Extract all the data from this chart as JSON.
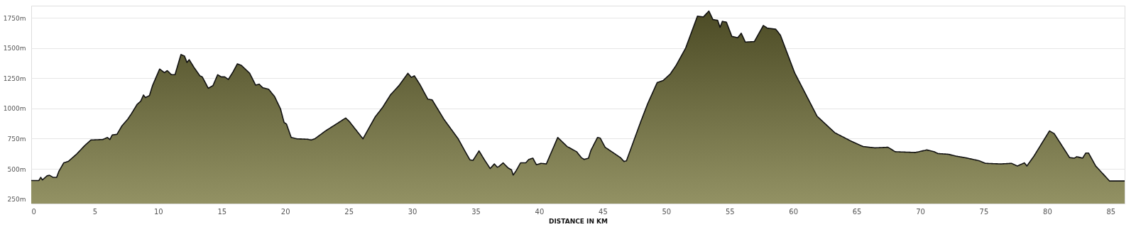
{
  "chart_data": {
    "type": "area",
    "xlabel": "DISTANCE IN KM",
    "xlim": [
      0,
      86.1
    ],
    "xticks": [
      0,
      5,
      10,
      15,
      20,
      25,
      30,
      35,
      40,
      45,
      50,
      55,
      60,
      65,
      70,
      75,
      80,
      85
    ],
    "ylim": [
      213,
      1850
    ],
    "yticks": [
      {
        "value": 250,
        "label": "250m"
      },
      {
        "value": 500,
        "label": "500m"
      },
      {
        "value": 750,
        "label": "750m"
      },
      {
        "value": 1000,
        "label": "1000m"
      },
      {
        "value": 1250,
        "label": "1250m"
      },
      {
        "value": 1500,
        "label": "1500m"
      },
      {
        "value": 1750,
        "label": "1750m"
      }
    ],
    "grid": "y",
    "marker": "none",
    "line_style": "solid",
    "series": [
      {
        "color": "#7c7a3c",
        "x": [
          0,
          0.6,
          0.75,
          0.88,
          1.25,
          1.44,
          1.72,
          2.0,
          2.18,
          2.56,
          2.93,
          3.58,
          4.24,
          4.7,
          5.63,
          6.0,
          6.19,
          6.38,
          6.75,
          7.13,
          7.59,
          7.87,
          8.34,
          8.62,
          8.84,
          8.99,
          9.31,
          9.55,
          10.11,
          10.49,
          10.71,
          11.04,
          11.32,
          11.79,
          12.07,
          12.26,
          12.44,
          12.82,
          13.28,
          13.47,
          13.94,
          14.31,
          14.68,
          14.96,
          15.24,
          15.52,
          15.9,
          16.23,
          16.55,
          17.2,
          17.67,
          17.95,
          18.23,
          18.69,
          19.16,
          19.63,
          19.91,
          20.1,
          20.47,
          20.93,
          21.77,
          22.05,
          22.33,
          23.17,
          24.29,
          24.76,
          25.04,
          26.12,
          27.09,
          27.65,
          28.3,
          28.96,
          29.66,
          29.93,
          30.17,
          30.6,
          31.23,
          31.57,
          32.5,
          33.62,
          34.18,
          34.55,
          34.79,
          35.26,
          35.67,
          36.14,
          36.47,
          36.7,
          36.83,
          37.16,
          37.54,
          37.82,
          37.95,
          38.19,
          38.53,
          38.94,
          39.18,
          39.5,
          39.78,
          40.15,
          40.56,
          41.46,
          42.2,
          42.95,
          43.32,
          43.54,
          43.88,
          44.07,
          44.59,
          44.81,
          45.19,
          46.4,
          46.68,
          46.87,
          47.99,
          48.54,
          49.29,
          49.76,
          50.32,
          50.78,
          51.53,
          52.46,
          52.93,
          53.36,
          53.68,
          54.05,
          54.24,
          54.42,
          54.74,
          55.17,
          55.63,
          55.91,
          56.23,
          56.94,
          57.65,
          57.97,
          58.62,
          58.99,
          60.11,
          61.88,
          63.28,
          64.59,
          65.5,
          66.44,
          67.47,
          68.03,
          69.62,
          69.9,
          70.51,
          71.11,
          71.39,
          72.23,
          72.79,
          73.54,
          74.66,
          75.13,
          76.35,
          77.19,
          77.65,
          78.21,
          78.4,
          78.96,
          80.18,
          80.55,
          81.77,
          82.14,
          82.33,
          82.79,
          83.04,
          83.26,
          83.82,
          84.91,
          86.1
        ],
        "values": [
          404,
          404,
          430,
          409,
          443,
          447,
          430,
          430,
          481,
          550,
          563,
          623,
          696,
          739,
          743,
          760,
          743,
          781,
          786,
          854,
          910,
          953,
          1034,
          1060,
          1111,
          1090,
          1107,
          1189,
          1326,
          1296,
          1313,
          1279,
          1279,
          1446,
          1433,
          1381,
          1403,
          1339,
          1270,
          1261,
          1167,
          1189,
          1279,
          1261,
          1261,
          1240,
          1304,
          1369,
          1356,
          1291,
          1193,
          1201,
          1171,
          1159,
          1099,
          996,
          884,
          871,
          760,
          749,
          745,
          739,
          749,
          814,
          889,
          921,
          893,
          749,
          931,
          1006,
          1114,
          1189,
          1291,
          1257,
          1270,
          1199,
          1077,
          1071,
          910,
          749,
          642,
          574,
          571,
          649,
          578,
          503,
          541,
          514,
          520,
          550,
          509,
          492,
          449,
          486,
          550,
          550,
          578,
          589,
          535,
          546,
          541,
          760,
          685,
          642,
          593,
          578,
          589,
          653,
          760,
          754,
          679,
          593,
          561,
          567,
          889,
          1039,
          1214,
          1231,
          1285,
          1356,
          1499,
          1763,
          1757,
          1806,
          1735,
          1729,
          1671,
          1720,
          1714,
          1596,
          1585,
          1622,
          1549,
          1553,
          1686,
          1664,
          1656,
          1607,
          1296,
          936,
          799,
          728,
          685,
          674,
          679,
          642,
          636,
          642,
          657,
          642,
          627,
          621,
          606,
          593,
          567,
          546,
          541,
          546,
          524,
          550,
          524,
          606,
          814,
          792,
          593,
          589,
          601,
          589,
          631,
          631,
          524,
          400,
          400
        ]
      }
    ]
  }
}
